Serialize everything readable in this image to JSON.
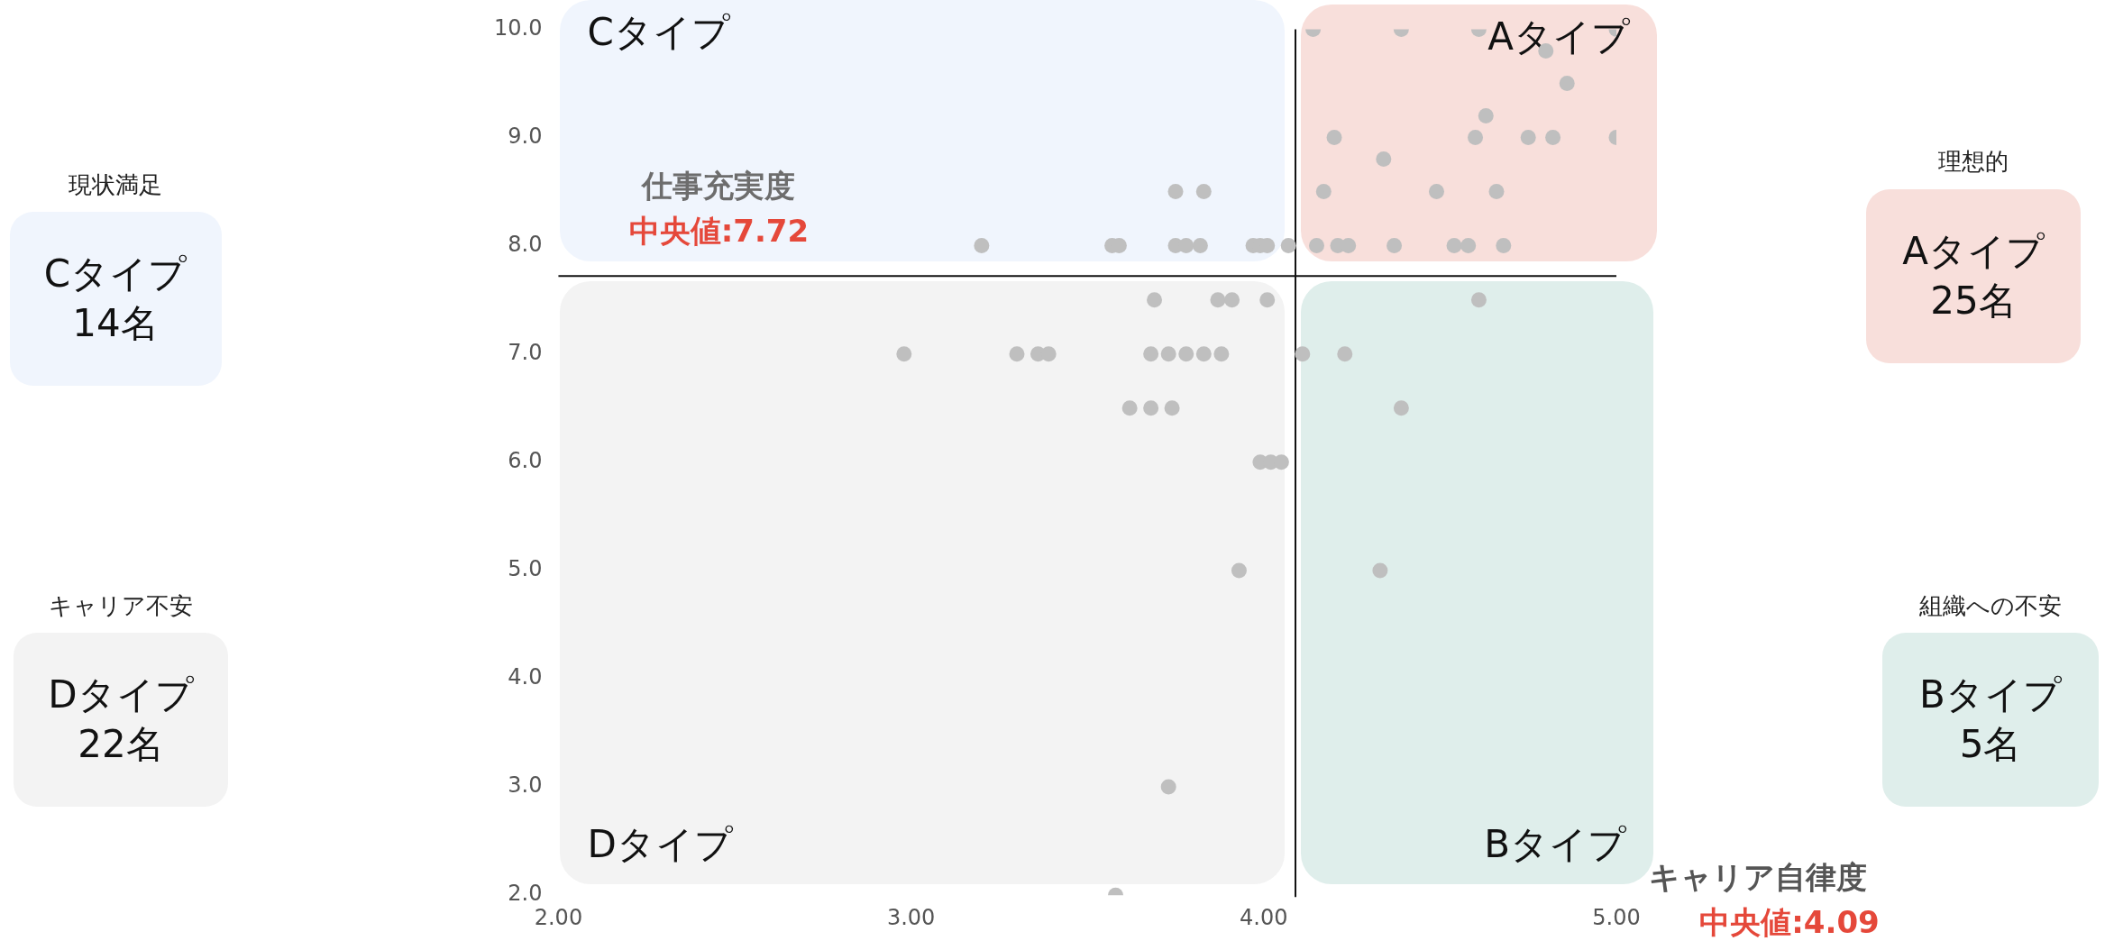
{
  "chart_data": {
    "type": "scatter",
    "xlabel": "キャリア自律度",
    "ylabel": "仕事充実度",
    "x": [
      3.2,
      3.57,
      3.59,
      3.75,
      3.78,
      3.82,
      3.97,
      3.99,
      4.01,
      4.07,
      4.15,
      4.21,
      4.24,
      4.37,
      4.54,
      4.58,
      4.68,
      3.75,
      3.83,
      4.17,
      4.49,
      4.66,
      4.34,
      4.2,
      4.6,
      4.75,
      4.82,
      5.0,
      4.63,
      4.86,
      4.8,
      4.14,
      4.39,
      4.61,
      5.0,
      3.69,
      3.87,
      3.91,
      4.01,
      4.61,
      2.98,
      3.3,
      3.36,
      3.39,
      3.68,
      3.73,
      3.78,
      3.83,
      3.88,
      4.11,
      4.23,
      3.62,
      3.68,
      3.74,
      4.39,
      3.99,
      4.02,
      4.05,
      3.93,
      4.33,
      3.73,
      3.58
    ],
    "values": [
      8,
      8,
      8,
      8,
      8,
      8,
      8,
      8,
      8,
      8,
      8,
      8,
      8,
      8,
      8,
      8,
      8,
      8.5,
      8.5,
      8.5,
      8.5,
      8.5,
      8.8,
      9,
      9,
      9,
      9,
      9,
      9.2,
      9.5,
      9.8,
      10,
      10,
      10,
      10,
      7.5,
      7.5,
      7.5,
      7.5,
      7.5,
      7,
      7,
      7,
      7,
      7,
      7,
      7,
      7,
      7,
      7,
      7,
      6.5,
      6.5,
      6.5,
      6.5,
      6,
      6,
      6,
      5,
      5,
      3,
      2
    ],
    "color": "#bfbfbf",
    "marker": "circle",
    "grid": false,
    "legend": false,
    "xlim": [
      2,
      5
    ],
    "ylim": [
      2,
      10
    ],
    "xticks": [
      {
        "value": 2,
        "label": "2.00"
      },
      {
        "value": 3,
        "label": "3.00"
      },
      {
        "value": 4,
        "label": "4.00"
      },
      {
        "value": 5,
        "label": "5.00"
      }
    ],
    "yticks": [
      {
        "value": 2,
        "label": "2.0"
      },
      {
        "value": 3,
        "label": "3.0"
      },
      {
        "value": 4,
        "label": "4.0"
      },
      {
        "value": 5,
        "label": "5.0"
      },
      {
        "value": 6,
        "label": "6.0"
      },
      {
        "value": 7,
        "label": "7.0"
      },
      {
        "value": 8,
        "label": "8.0"
      },
      {
        "value": 9,
        "label": "9.0"
      },
      {
        "value": 10,
        "label": "10.0"
      }
    ],
    "ref_lines": [
      {
        "axis": "x",
        "value": 4.09
      },
      {
        "axis": "y",
        "value": 7.72,
        "label": "中央値:7.72"
      }
    ],
    "annotations": [
      "Cタイプ",
      "Aタイプ",
      "Dタイプ",
      "Bタイプ",
      "現状満足",
      "Cタイプ\n14名",
      "キャリア不安",
      "Dタイプ\n22名",
      "理想的",
      "Aタイプ\n25名",
      "組織への不安",
      "Bタイプ\n5名",
      "中央値:4.09"
    ]
  }
}
